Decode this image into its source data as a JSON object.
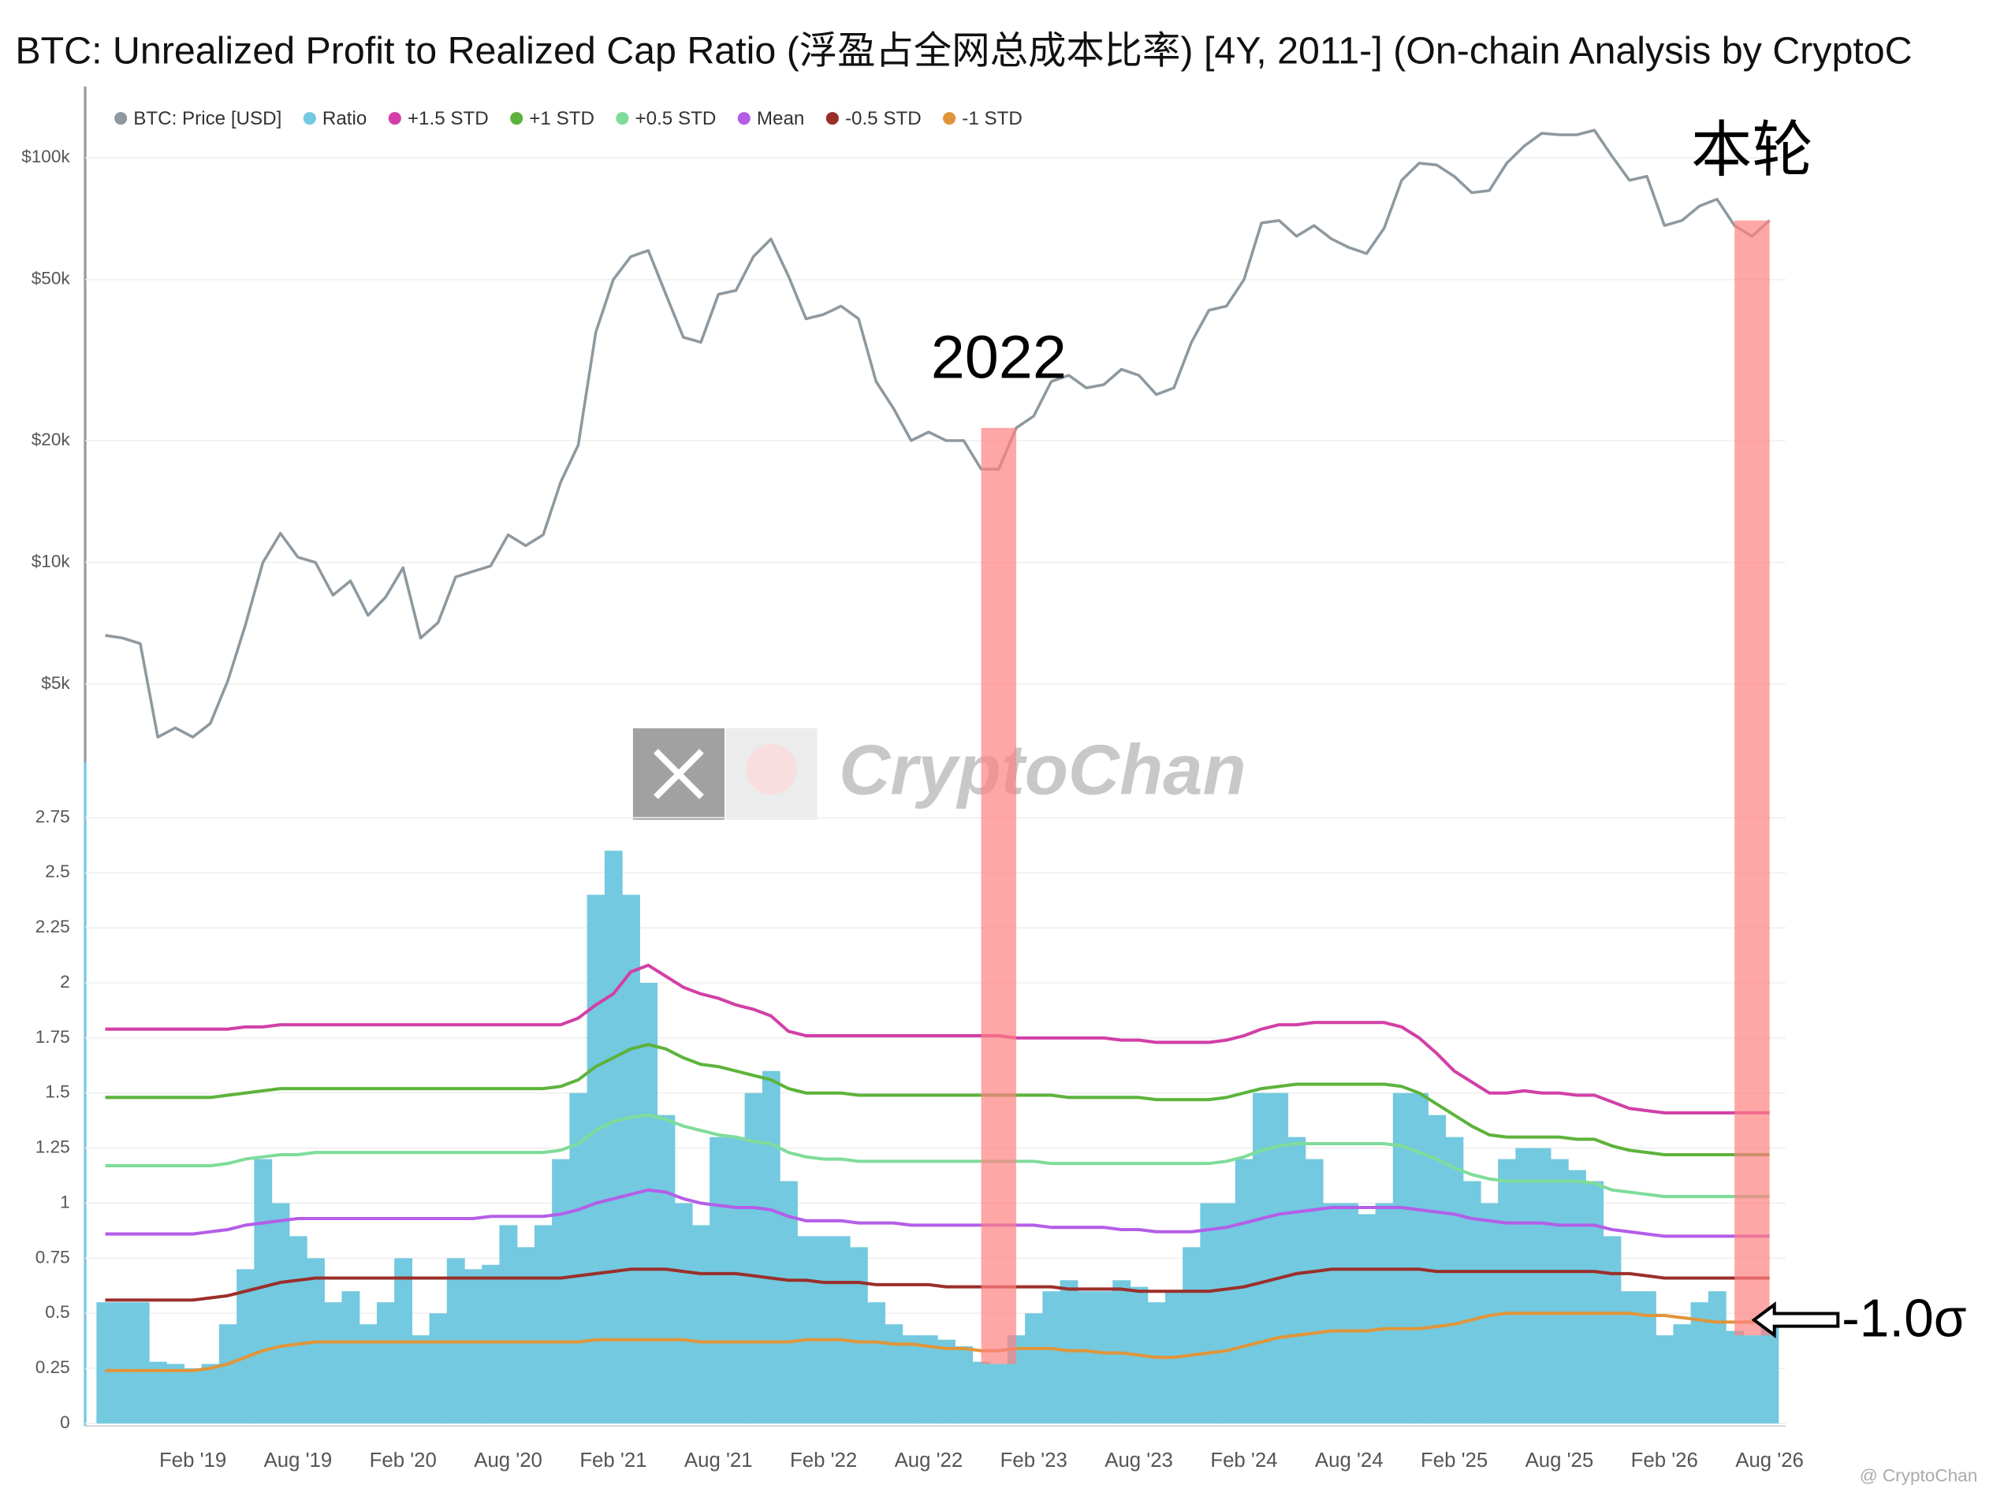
{
  "chart_data": {
    "type": "line",
    "title": "BTC: Unrealized Profit to Realized Cap Ratio (浮盈占全网总成本比率) [4Y, 2011-] (On-chain Analysis by CryptoC",
    "x": [
      "2018-09",
      "2018-10",
      "2018-11",
      "2018-12",
      "2019-01",
      "2019-02",
      "2019-03",
      "2019-04",
      "2019-05",
      "2019-06",
      "2019-07",
      "2019-08",
      "2019-09",
      "2019-10",
      "2019-11",
      "2019-12",
      "2020-01",
      "2020-02",
      "2020-03",
      "2020-04",
      "2020-05",
      "2020-06",
      "2020-07",
      "2020-08",
      "2020-09",
      "2020-10",
      "2020-11",
      "2020-12",
      "2021-01",
      "2021-02",
      "2021-03",
      "2021-04",
      "2021-05",
      "2021-06",
      "2021-07",
      "2021-08",
      "2021-09",
      "2021-10",
      "2021-11",
      "2021-12",
      "2022-01",
      "2022-02",
      "2022-03",
      "2022-04",
      "2022-05",
      "2022-06",
      "2022-07",
      "2022-08",
      "2022-09",
      "2022-10",
      "2022-11",
      "2022-12",
      "2023-01",
      "2023-02",
      "2023-03",
      "2023-04",
      "2023-05",
      "2023-06",
      "2023-07",
      "2023-08",
      "2023-09",
      "2023-10",
      "2023-11",
      "2023-12",
      "2024-01",
      "2024-02",
      "2024-03",
      "2024-04",
      "2024-05",
      "2024-06",
      "2024-07",
      "2024-08",
      "2024-09",
      "2024-10",
      "2024-11",
      "2024-12",
      "2025-01",
      "2025-02",
      "2025-03",
      "2025-04",
      "2025-05",
      "2025-06",
      "2025-07",
      "2025-08",
      "2025-09",
      "2025-10",
      "2025-11",
      "2025-12",
      "2026-01",
      "2026-02",
      "2026-03",
      "2026-04",
      "2026-05",
      "2026-06",
      "2026-07",
      "2026-08"
    ],
    "xlim": [
      "2018-08",
      "2026-09"
    ],
    "xticks": [
      {
        "value": "2019-02",
        "label": "Feb '19"
      },
      {
        "value": "2019-08",
        "label": "Aug '19"
      },
      {
        "value": "2020-02",
        "label": "Feb '20"
      },
      {
        "value": "2020-08",
        "label": "Aug '20"
      },
      {
        "value": "2021-02",
        "label": "Feb '21"
      },
      {
        "value": "2021-08",
        "label": "Aug '21"
      },
      {
        "value": "2022-02",
        "label": "Feb '22"
      },
      {
        "value": "2022-08",
        "label": "Aug '22"
      },
      {
        "value": "2023-02",
        "label": "Feb '23"
      },
      {
        "value": "2023-08",
        "label": "Aug '23"
      },
      {
        "value": "2024-02",
        "label": "Feb '24"
      },
      {
        "value": "2024-08",
        "label": "Aug '24"
      },
      {
        "value": "2025-02",
        "label": "Feb '25"
      },
      {
        "value": "2025-08",
        "label": "Aug '25"
      },
      {
        "value": "2026-02",
        "label": "Feb '26"
      },
      {
        "value": "2026-08",
        "label": "Aug '26"
      }
    ],
    "ylim": [
      0,
      3
    ],
    "yticks": [
      0,
      0.25,
      0.5,
      0.75,
      1,
      1.25,
      1.5,
      1.75,
      2,
      2.25,
      2.5,
      2.75
    ],
    "y2lim": [
      3200,
      150000
    ],
    "y2scale": "log",
    "y2ticks": [
      {
        "value": 5000,
        "label": "$5k"
      },
      {
        "value": 10000,
        "label": "$10k"
      },
      {
        "value": 20000,
        "label": "$20k"
      },
      {
        "value": 50000,
        "label": "$50k"
      },
      {
        "value": 100000,
        "label": "$100k"
      }
    ],
    "grid": true,
    "legend": "top-left",
    "series": [
      {
        "name": "BTC: Price [USD]",
        "color": "#8e999f",
        "type": "line",
        "axis": "y2",
        "values": [
          6600,
          6500,
          6300,
          3700,
          3900,
          3700,
          4000,
          5100,
          7000,
          10000,
          11800,
          10300,
          10000,
          8300,
          9000,
          7400,
          8200,
          9700,
          6500,
          7100,
          9200,
          9500,
          9800,
          11700,
          11000,
          11700,
          15800,
          19500,
          37000,
          50000,
          57000,
          59000,
          46000,
          36000,
          35000,
          46000,
          47000,
          57000,
          63000,
          51000,
          40000,
          41000,
          43000,
          40000,
          28000,
          24000,
          20000,
          21000,
          20000,
          20000,
          17000,
          17000,
          21500,
          23000,
          28000,
          29000,
          27000,
          27500,
          30000,
          29000,
          26000,
          27000,
          35000,
          42000,
          43000,
          50000,
          69000,
          70000,
          64000,
          68000,
          63000,
          60000,
          58000,
          67000,
          88000,
          97000,
          96000,
          90000,
          82000,
          83000,
          97000,
          107000,
          115000,
          114000,
          114000,
          117000,
          101000,
          88000,
          90000,
          68000,
          70000,
          76000,
          79000,
          68000,
          64000,
          70000
        ]
      },
      {
        "name": "Ratio",
        "color": "#73c9df",
        "type": "area",
        "values": [
          0.55,
          0.55,
          0.55,
          0.28,
          0.27,
          0.25,
          0.27,
          0.45,
          0.7,
          1.2,
          1.0,
          0.85,
          0.75,
          0.55,
          0.6,
          0.45,
          0.55,
          0.75,
          0.4,
          0.5,
          0.75,
          0.7,
          0.72,
          0.9,
          0.8,
          0.9,
          1.2,
          1.5,
          2.4,
          2.6,
          2.4,
          2.0,
          1.4,
          1.0,
          0.9,
          1.3,
          1.3,
          1.5,
          1.6,
          1.1,
          0.85,
          0.85,
          0.85,
          0.8,
          0.55,
          0.45,
          0.4,
          0.4,
          0.38,
          0.35,
          0.28,
          0.27,
          0.4,
          0.5,
          0.6,
          0.65,
          0.6,
          0.6,
          0.65,
          0.62,
          0.55,
          0.6,
          0.8,
          1.0,
          1.0,
          1.2,
          1.5,
          1.5,
          1.3,
          1.2,
          1.0,
          1.0,
          0.95,
          1.0,
          1.5,
          1.5,
          1.4,
          1.3,
          1.1,
          1.0,
          1.2,
          1.25,
          1.25,
          1.2,
          1.15,
          1.1,
          0.85,
          0.6,
          0.6,
          0.4,
          0.45,
          0.55,
          0.6,
          0.42,
          0.4,
          0.45
        ]
      },
      {
        "name": "+1.5 STD",
        "color": "#d23fa6",
        "type": "line",
        "values": [
          1.79,
          1.79,
          1.79,
          1.79,
          1.79,
          1.79,
          1.79,
          1.79,
          1.8,
          1.8,
          1.81,
          1.81,
          1.81,
          1.81,
          1.81,
          1.81,
          1.81,
          1.81,
          1.81,
          1.81,
          1.81,
          1.81,
          1.81,
          1.81,
          1.81,
          1.81,
          1.81,
          1.84,
          1.9,
          1.95,
          2.05,
          2.08,
          2.03,
          1.98,
          1.95,
          1.93,
          1.9,
          1.88,
          1.85,
          1.78,
          1.76,
          1.76,
          1.76,
          1.76,
          1.76,
          1.76,
          1.76,
          1.76,
          1.76,
          1.76,
          1.76,
          1.76,
          1.75,
          1.75,
          1.75,
          1.75,
          1.75,
          1.75,
          1.74,
          1.74,
          1.73,
          1.73,
          1.73,
          1.73,
          1.74,
          1.76,
          1.79,
          1.81,
          1.81,
          1.82,
          1.82,
          1.82,
          1.82,
          1.82,
          1.8,
          1.75,
          1.68,
          1.6,
          1.55,
          1.5,
          1.5,
          1.51,
          1.5,
          1.5,
          1.49,
          1.49,
          1.46,
          1.43,
          1.42,
          1.41,
          1.41,
          1.41,
          1.41,
          1.41,
          1.41,
          1.41
        ]
      },
      {
        "name": "+1 STD",
        "color": "#5db33b",
        "type": "line",
        "values": [
          1.48,
          1.48,
          1.48,
          1.48,
          1.48,
          1.48,
          1.48,
          1.49,
          1.5,
          1.51,
          1.52,
          1.52,
          1.52,
          1.52,
          1.52,
          1.52,
          1.52,
          1.52,
          1.52,
          1.52,
          1.52,
          1.52,
          1.52,
          1.52,
          1.52,
          1.52,
          1.53,
          1.56,
          1.62,
          1.66,
          1.7,
          1.72,
          1.7,
          1.66,
          1.63,
          1.62,
          1.6,
          1.58,
          1.56,
          1.52,
          1.5,
          1.5,
          1.5,
          1.49,
          1.49,
          1.49,
          1.49,
          1.49,
          1.49,
          1.49,
          1.49,
          1.49,
          1.49,
          1.49,
          1.49,
          1.48,
          1.48,
          1.48,
          1.48,
          1.48,
          1.47,
          1.47,
          1.47,
          1.47,
          1.48,
          1.5,
          1.52,
          1.53,
          1.54,
          1.54,
          1.54,
          1.54,
          1.54,
          1.54,
          1.53,
          1.5,
          1.45,
          1.4,
          1.35,
          1.31,
          1.3,
          1.3,
          1.3,
          1.3,
          1.29,
          1.29,
          1.26,
          1.24,
          1.23,
          1.22,
          1.22,
          1.22,
          1.22,
          1.22,
          1.22,
          1.22
        ]
      },
      {
        "name": "+0.5 STD",
        "color": "#7fdc9a",
        "type": "line",
        "values": [
          1.17,
          1.17,
          1.17,
          1.17,
          1.17,
          1.17,
          1.17,
          1.18,
          1.2,
          1.21,
          1.22,
          1.22,
          1.23,
          1.23,
          1.23,
          1.23,
          1.23,
          1.23,
          1.23,
          1.23,
          1.23,
          1.23,
          1.23,
          1.23,
          1.23,
          1.23,
          1.24,
          1.27,
          1.33,
          1.37,
          1.39,
          1.4,
          1.38,
          1.35,
          1.33,
          1.31,
          1.3,
          1.28,
          1.27,
          1.23,
          1.21,
          1.2,
          1.2,
          1.19,
          1.19,
          1.19,
          1.19,
          1.19,
          1.19,
          1.19,
          1.19,
          1.19,
          1.19,
          1.19,
          1.18,
          1.18,
          1.18,
          1.18,
          1.18,
          1.18,
          1.18,
          1.18,
          1.18,
          1.18,
          1.19,
          1.21,
          1.24,
          1.26,
          1.27,
          1.27,
          1.27,
          1.27,
          1.27,
          1.27,
          1.26,
          1.23,
          1.2,
          1.16,
          1.13,
          1.11,
          1.1,
          1.1,
          1.1,
          1.1,
          1.1,
          1.09,
          1.06,
          1.05,
          1.04,
          1.03,
          1.03,
          1.03,
          1.03,
          1.03,
          1.03,
          1.03
        ]
      },
      {
        "name": "Mean",
        "color": "#b45ee8",
        "type": "line",
        "values": [
          0.86,
          0.86,
          0.86,
          0.86,
          0.86,
          0.86,
          0.87,
          0.88,
          0.9,
          0.91,
          0.92,
          0.93,
          0.93,
          0.93,
          0.93,
          0.93,
          0.93,
          0.93,
          0.93,
          0.93,
          0.93,
          0.93,
          0.94,
          0.94,
          0.94,
          0.94,
          0.95,
          0.97,
          1.0,
          1.02,
          1.04,
          1.06,
          1.05,
          1.02,
          1.0,
          0.99,
          0.98,
          0.98,
          0.97,
          0.94,
          0.92,
          0.92,
          0.92,
          0.91,
          0.91,
          0.91,
          0.9,
          0.9,
          0.9,
          0.9,
          0.9,
          0.9,
          0.9,
          0.9,
          0.89,
          0.89,
          0.89,
          0.89,
          0.88,
          0.88,
          0.87,
          0.87,
          0.87,
          0.88,
          0.89,
          0.91,
          0.93,
          0.95,
          0.96,
          0.97,
          0.98,
          0.98,
          0.98,
          0.98,
          0.98,
          0.97,
          0.96,
          0.95,
          0.93,
          0.92,
          0.91,
          0.91,
          0.91,
          0.9,
          0.9,
          0.9,
          0.88,
          0.87,
          0.86,
          0.85,
          0.85,
          0.85,
          0.85,
          0.85,
          0.85,
          0.85
        ]
      },
      {
        "name": "-0.5 STD",
        "color": "#9a2f2a",
        "type": "line",
        "values": [
          0.56,
          0.56,
          0.56,
          0.56,
          0.56,
          0.56,
          0.57,
          0.58,
          0.6,
          0.62,
          0.64,
          0.65,
          0.66,
          0.66,
          0.66,
          0.66,
          0.66,
          0.66,
          0.66,
          0.66,
          0.66,
          0.66,
          0.66,
          0.66,
          0.66,
          0.66,
          0.66,
          0.67,
          0.68,
          0.69,
          0.7,
          0.7,
          0.7,
          0.69,
          0.68,
          0.68,
          0.68,
          0.67,
          0.66,
          0.65,
          0.65,
          0.64,
          0.64,
          0.64,
          0.63,
          0.63,
          0.63,
          0.63,
          0.62,
          0.62,
          0.62,
          0.62,
          0.62,
          0.62,
          0.62,
          0.61,
          0.61,
          0.61,
          0.61,
          0.6,
          0.6,
          0.6,
          0.6,
          0.6,
          0.61,
          0.62,
          0.64,
          0.66,
          0.68,
          0.69,
          0.7,
          0.7,
          0.7,
          0.7,
          0.7,
          0.7,
          0.69,
          0.69,
          0.69,
          0.69,
          0.69,
          0.69,
          0.69,
          0.69,
          0.69,
          0.69,
          0.68,
          0.68,
          0.67,
          0.66,
          0.66,
          0.66,
          0.66,
          0.66,
          0.66,
          0.66
        ]
      },
      {
        "name": "-1 STD",
        "color": "#e0953a",
        "type": "line",
        "values": [
          0.24,
          0.24,
          0.24,
          0.24,
          0.24,
          0.24,
          0.25,
          0.27,
          0.3,
          0.33,
          0.35,
          0.36,
          0.37,
          0.37,
          0.37,
          0.37,
          0.37,
          0.37,
          0.37,
          0.37,
          0.37,
          0.37,
          0.37,
          0.37,
          0.37,
          0.37,
          0.37,
          0.37,
          0.38,
          0.38,
          0.38,
          0.38,
          0.38,
          0.38,
          0.37,
          0.37,
          0.37,
          0.37,
          0.37,
          0.37,
          0.38,
          0.38,
          0.38,
          0.37,
          0.37,
          0.36,
          0.36,
          0.35,
          0.34,
          0.34,
          0.33,
          0.33,
          0.34,
          0.34,
          0.34,
          0.33,
          0.33,
          0.32,
          0.32,
          0.31,
          0.3,
          0.3,
          0.31,
          0.32,
          0.33,
          0.35,
          0.37,
          0.39,
          0.4,
          0.41,
          0.42,
          0.42,
          0.42,
          0.43,
          0.43,
          0.43,
          0.44,
          0.45,
          0.47,
          0.49,
          0.5,
          0.5,
          0.5,
          0.5,
          0.5,
          0.5,
          0.5,
          0.5,
          0.49,
          0.49,
          0.48,
          0.47,
          0.46,
          0.46,
          0.46,
          0.47
        ]
      }
    ],
    "highlights": [
      {
        "start": "2022-11",
        "end": "2023-01",
        "label": "2022"
      },
      {
        "start": "2026-06",
        "end": "2026-08",
        "label": "本轮"
      }
    ],
    "highlight_color": "#ff8080",
    "annotation": "-1.0σ",
    "watermark": "CryptoChan",
    "credit": "@ CryptoChan"
  }
}
